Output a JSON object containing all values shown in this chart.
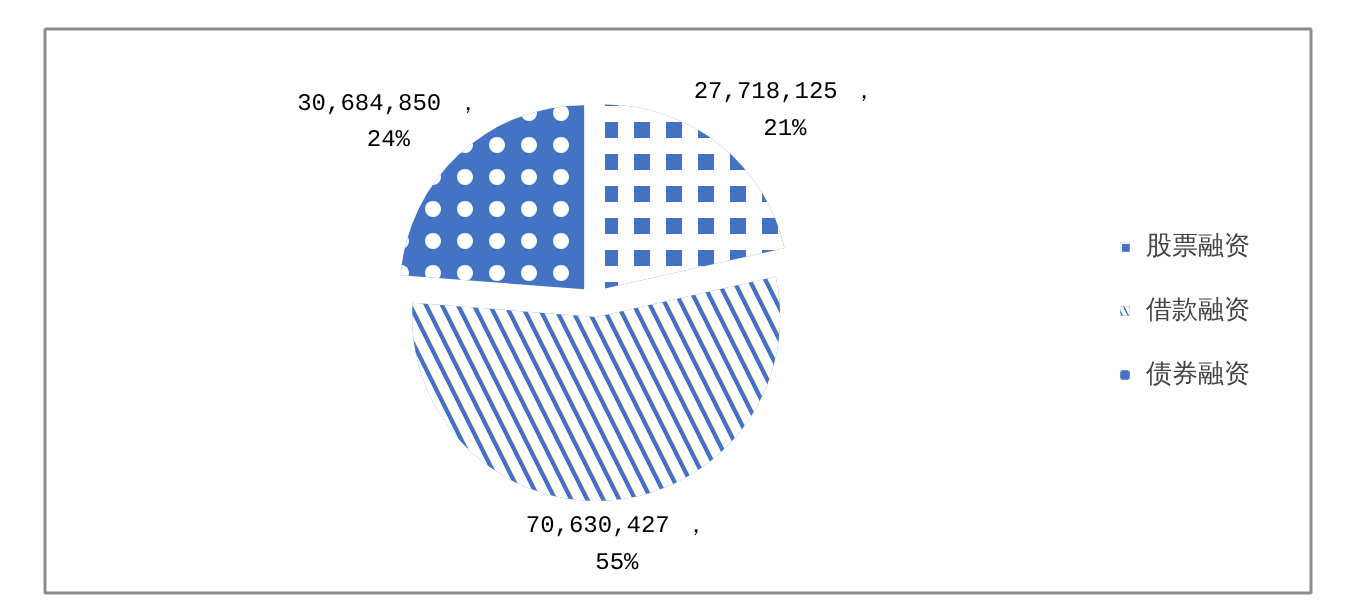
{
  "chart_data": {
    "type": "pie",
    "categories": [
      "股票融资",
      "借款融资",
      "债券融资"
    ],
    "values": [
      27718125,
      70630427,
      30684850
    ],
    "colors": [
      "#4472c4",
      "#4472c4",
      "#4472c4"
    ],
    "value_labels": [
      "27,718,125 ，\n21%",
      "70,630,427 ，\n55%",
      "30,684,850 ，\n24%"
    ],
    "legend": "right"
  }
}
